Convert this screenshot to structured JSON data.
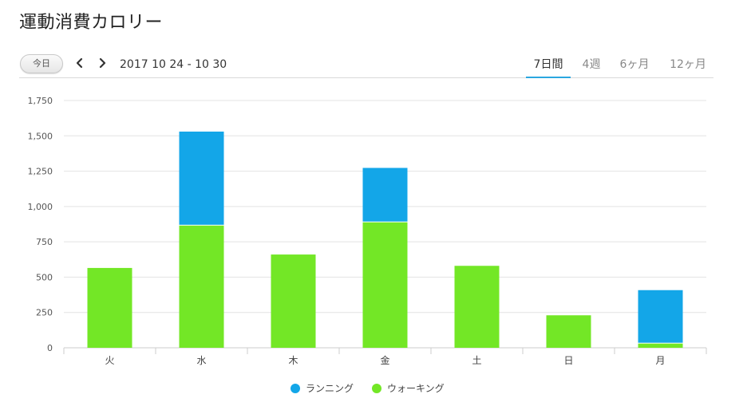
{
  "title": "運動消費カロリー",
  "toolbar": {
    "today_label": "今日",
    "date_range": "2017 10 24 - 10 30",
    "tabs": [
      {
        "label": "7日間",
        "active": true
      },
      {
        "label": "4週",
        "active": false
      },
      {
        "label": "6ヶ月",
        "active": false
      },
      {
        "label": "12ヶ月",
        "active": false
      }
    ]
  },
  "colors": {
    "running": "#13a6e8",
    "walking": "#73e726",
    "grid": "#e3e3e3",
    "axis": "#cccccc"
  },
  "chart_data": {
    "type": "bar",
    "stacked": true,
    "categories": [
      "火",
      "水",
      "木",
      "金",
      "土",
      "日",
      "月"
    ],
    "yticks": [
      "0",
      "250",
      "500",
      "750",
      "1,000",
      "1,250",
      "1,500",
      "1,750"
    ],
    "ylim": [
      0,
      1750
    ],
    "grid": true,
    "legend_position": "bottom-center",
    "series": [
      {
        "name": "ウォーキング",
        "values": [
          565,
          865,
          660,
          888,
          580,
          230,
          30
        ]
      },
      {
        "name": "ランニング",
        "values": [
          0,
          665,
          0,
          385,
          0,
          0,
          378
        ]
      }
    ]
  },
  "legend": {
    "items": [
      {
        "label": "ランニング"
      },
      {
        "label": "ウォーキング"
      }
    ]
  }
}
